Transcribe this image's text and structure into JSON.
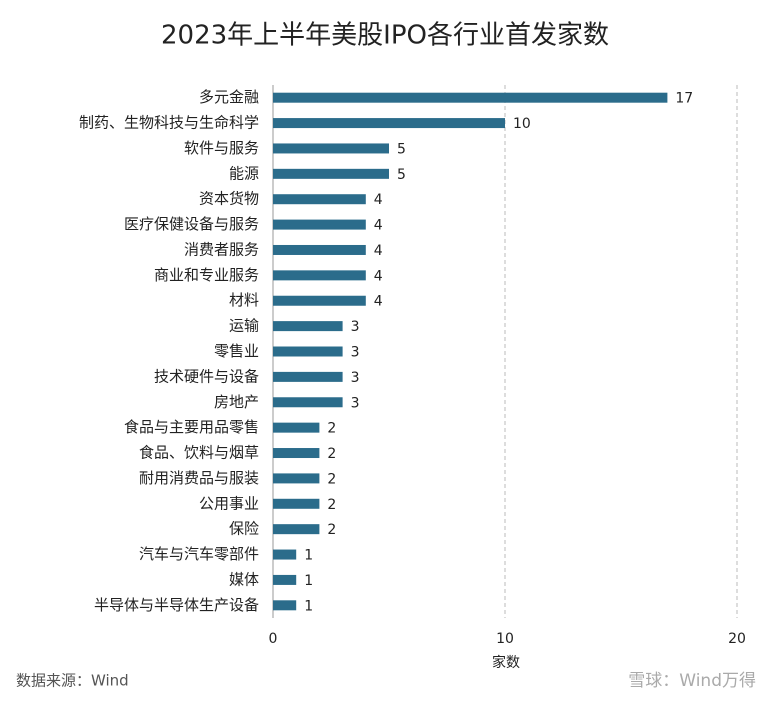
{
  "chart_data": {
    "type": "bar",
    "orientation": "horizontal",
    "title": "2023年上半年美股IPO各行业首发家数",
    "categories": [
      "多元金融",
      "制药、生物科技与生命科学",
      "软件与服务",
      "能源",
      "资本货物",
      "医疗保健设备与服务",
      "消费者服务",
      "商业和专业服务",
      "材料",
      "运输",
      "零售业",
      "技术硬件与设备",
      "房地产",
      "食品与主要用品零售",
      "食品、饮料与烟草",
      "耐用消费品与服装",
      "公用事业",
      "保险",
      "汽车与汽车零部件",
      "媒体",
      "半导体与半导体生产设备"
    ],
    "values": [
      17,
      10,
      5,
      5,
      4,
      4,
      4,
      4,
      4,
      3,
      3,
      3,
      3,
      2,
      2,
      2,
      2,
      2,
      1,
      1,
      1
    ],
    "color": "#2b6c8b",
    "xlim": [
      0,
      20
    ],
    "xticks": [
      0,
      10,
      20
    ],
    "x_label": "家数",
    "grid": true
  },
  "source": "数据来源：Wind",
  "watermark": "雪球：Wind万得"
}
